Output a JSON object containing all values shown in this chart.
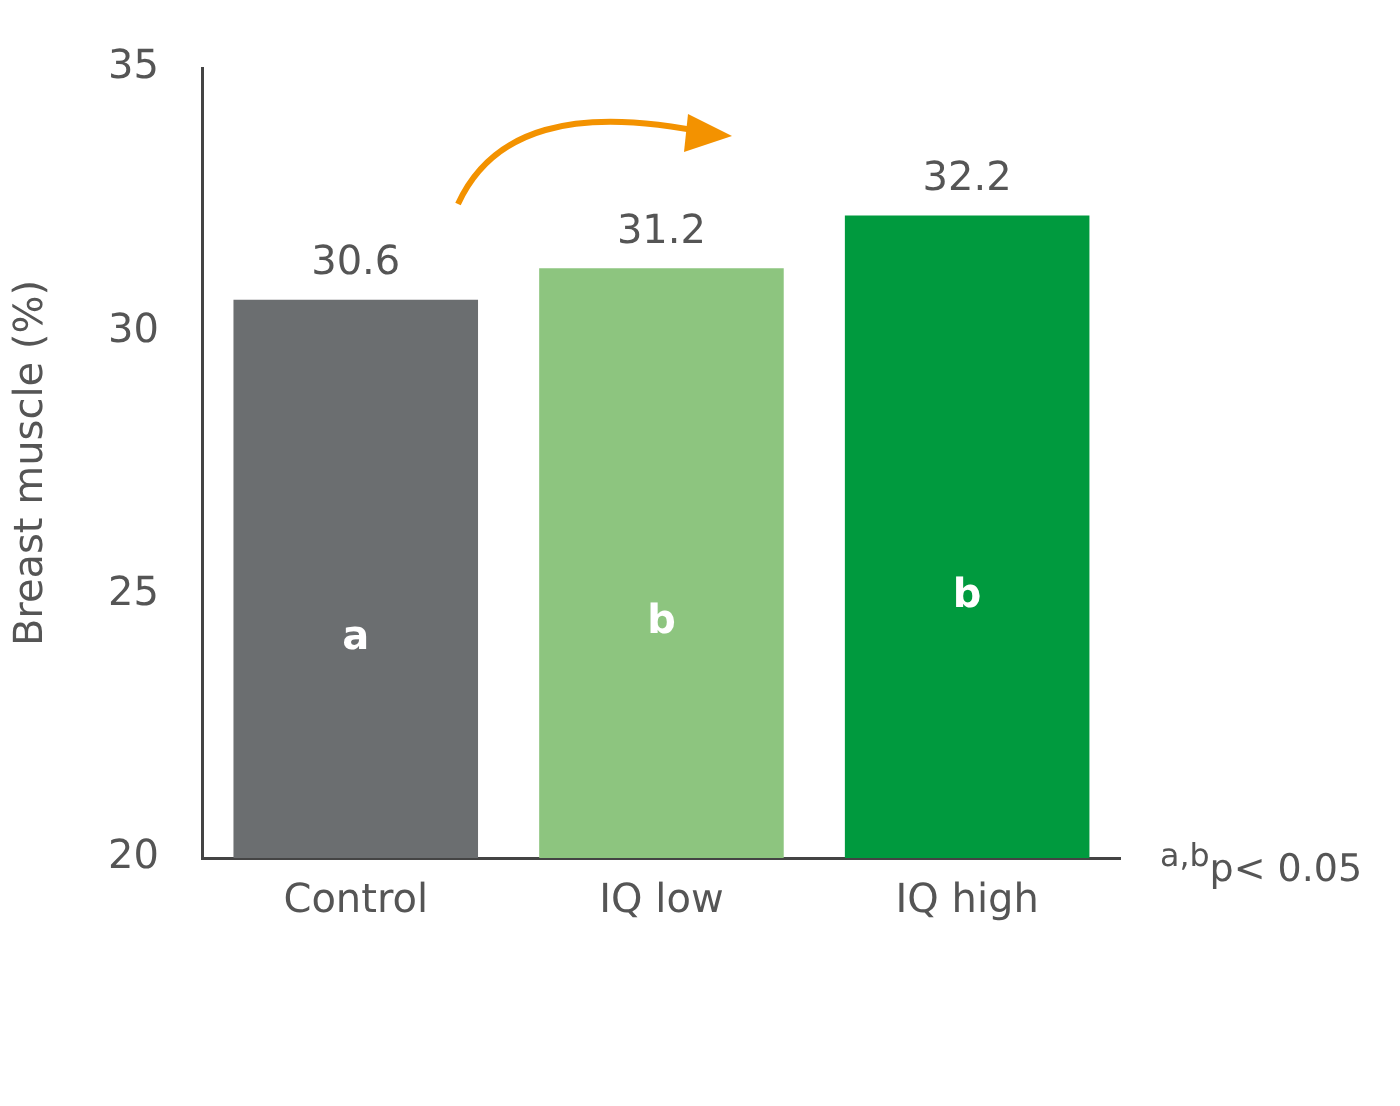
{
  "chart_data": {
    "type": "bar",
    "ylabel": "Breast muscle (%)",
    "categories": [
      "Control",
      "IQ low",
      "IQ high"
    ],
    "values": [
      30.6,
      31.2,
      32.2
    ],
    "colors": [
      "#6b6e70",
      "#8dc57f",
      "#009a3e"
    ],
    "ylim": [
      20,
      35
    ],
    "yticks": [
      20,
      25,
      30,
      35
    ],
    "grid": false,
    "legend": false,
    "data_labels": true,
    "annotations": [
      "a",
      "b",
      "b",
      "$^{a,b}$p< 0.05"
    ]
  }
}
